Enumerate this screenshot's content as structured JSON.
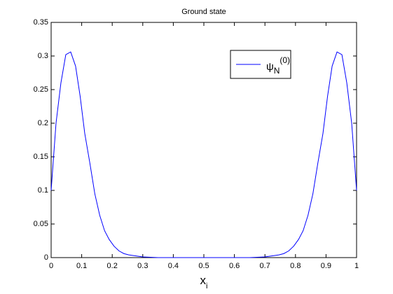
{
  "chart_data": {
    "type": "line",
    "title": "Ground state",
    "xlabel": "x",
    "xlabel_sub": "i",
    "x": [
      0,
      0.016,
      0.032,
      0.048,
      0.064,
      0.08,
      0.095,
      0.11,
      0.127,
      0.143,
      0.159,
      0.175,
      0.19,
      0.206,
      0.222,
      0.238,
      0.254,
      0.27,
      0.286,
      0.3,
      0.35,
      0.4,
      0.45,
      0.5,
      0.55,
      0.6,
      0.65,
      0.7,
      0.714,
      0.73,
      0.746,
      0.762,
      0.778,
      0.794,
      0.81,
      0.825,
      0.841,
      0.857,
      0.873,
      0.89,
      0.905,
      0.92,
      0.936,
      0.952,
      0.968,
      0.984,
      1
    ],
    "series": [
      {
        "name": "ψ",
        "name_sub": "N",
        "name_sup": "(0)",
        "color": "#0000ff",
        "values": [
          0.1,
          0.2,
          0.26,
          0.302,
          0.306,
          0.285,
          0.24,
          0.185,
          0.14,
          0.095,
          0.063,
          0.04,
          0.027,
          0.017,
          0.01,
          0.006,
          0.004,
          0.003,
          0.002,
          0.001,
          0,
          0,
          0,
          0,
          0,
          0,
          0,
          0.001,
          0.002,
          0.003,
          0.004,
          0.006,
          0.01,
          0.017,
          0.027,
          0.04,
          0.063,
          0.095,
          0.14,
          0.185,
          0.24,
          0.285,
          0.306,
          0.302,
          0.26,
          0.2,
          0.1
        ]
      }
    ],
    "xlim": [
      0,
      1
    ],
    "xticks": [
      0,
      0.1,
      0.2,
      0.3,
      0.4,
      0.5,
      0.6,
      0.7,
      0.8,
      0.9,
      1
    ],
    "ylim": [
      0,
      0.35
    ],
    "yticks": [
      0,
      0.05,
      0.1,
      0.15,
      0.2,
      0.25,
      0.3,
      0.35
    ],
    "grid": false,
    "legend": "upper right"
  }
}
